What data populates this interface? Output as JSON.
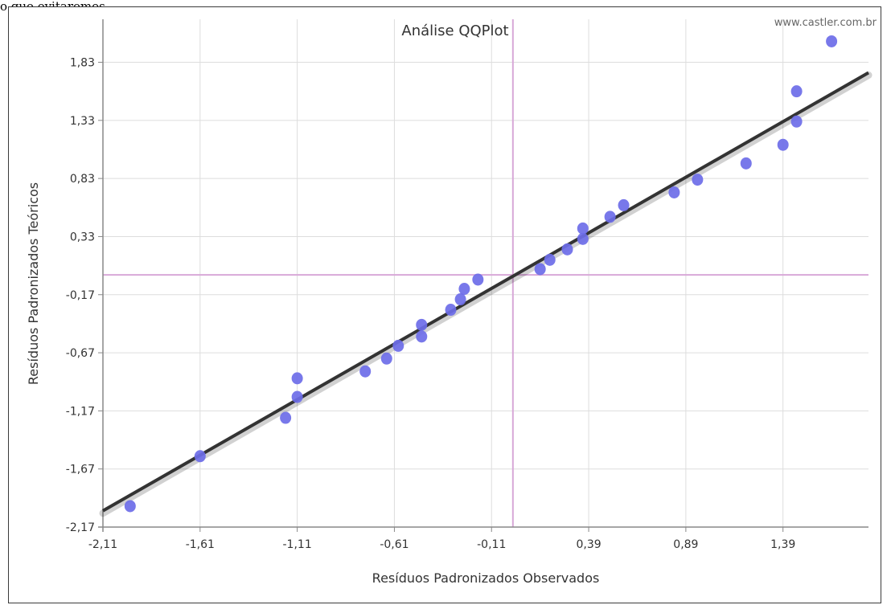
{
  "caption": "o que evitaremos",
  "credit": "www.castler.com.br",
  "colors": {
    "points": "#6c6ce8",
    "line": "#333333",
    "reference": "#d8a8d8",
    "grid": "#dddddd",
    "axis": "#888888"
  },
  "chart_data": {
    "type": "scatter",
    "title": "Análise QQPlot",
    "xlabel": "Resíduos Padronizados Observados",
    "ylabel": "Resíduos Padronizados Teóricos",
    "xlim": [
      -2.11,
      1.83
    ],
    "ylim": [
      -2.17,
      2.2
    ],
    "xticks": [
      -2.11,
      -1.61,
      -1.11,
      -0.61,
      -0.11,
      0.39,
      0.89,
      1.39
    ],
    "xtick_labels": [
      "-2,11",
      "-1,61",
      "-1,11",
      "-0,61",
      "-0,11",
      "0,39",
      "0,89",
      "1,39"
    ],
    "yticks": [
      -2.17,
      -1.67,
      -1.17,
      -0.67,
      -0.17,
      0.33,
      0.83,
      1.33,
      1.83
    ],
    "ytick_labels": [
      "-2,17",
      "-1,67",
      "-1,17",
      "-0,67",
      "-0,17",
      "0,33",
      "0,83",
      "1,33",
      "1,83"
    ],
    "grid": true,
    "reference_lines": {
      "x": 0.0,
      "y": 0.0
    },
    "fit_line": {
      "x": [
        -2.11,
        1.83
      ],
      "y": [
        -2.03,
        1.74
      ]
    },
    "points": {
      "x": [
        -1.97,
        -1.61,
        -1.17,
        -1.11,
        -1.11,
        -0.76,
        -0.65,
        -0.59,
        -0.47,
        -0.47,
        -0.32,
        -0.27,
        -0.25,
        -0.18,
        0.14,
        0.19,
        0.28,
        0.36,
        0.36,
        0.5,
        0.57,
        0.83,
        0.95,
        1.2,
        1.39,
        1.46,
        1.46,
        1.64
      ],
      "y": [
        -1.99,
        -1.56,
        -1.23,
        -1.05,
        -0.89,
        -0.83,
        -0.72,
        -0.61,
        -0.53,
        -0.43,
        -0.3,
        -0.21,
        -0.12,
        -0.04,
        0.05,
        0.13,
        0.22,
        0.31,
        0.4,
        0.5,
        0.6,
        0.71,
        0.82,
        0.96,
        1.12,
        1.32,
        1.58,
        2.01
      ]
    }
  }
}
